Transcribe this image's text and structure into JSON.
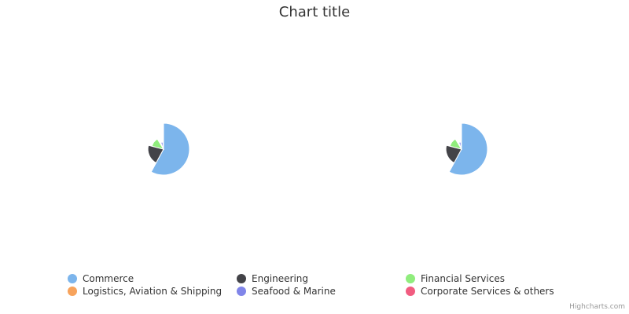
{
  "chart_data": {
    "type": "pie",
    "title": "Chart title",
    "legend_placement": "bottom",
    "credits": "Highcharts.com",
    "categories": [
      "Commerce",
      "Engineering",
      "Financial Services",
      "Logistics, Aviation & Shipping",
      "Seafood & Marine",
      "Corporate Services & others"
    ],
    "colors": [
      "#7cb5ec",
      "#434348",
      "#90ed7d",
      "#f7a35c",
      "#8085e9",
      "#f15c80"
    ],
    "series": [
      {
        "values": [
          33,
          12,
          7,
          1.5,
          2.5,
          1
        ]
      },
      {
        "values": [
          33,
          12,
          7,
          1.5,
          2.5,
          1
        ]
      }
    ]
  }
}
